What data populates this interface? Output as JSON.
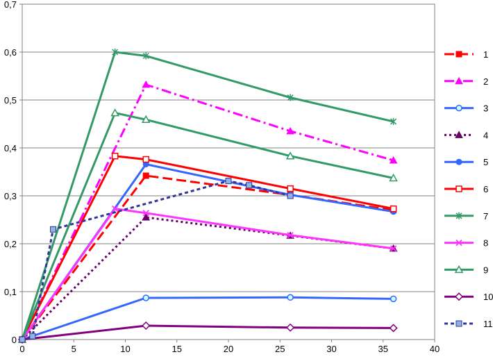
{
  "chart_data": {
    "type": "line",
    "title": "",
    "xlabel": "",
    "ylabel": "",
    "xlim": [
      0,
      40
    ],
    "ylim": [
      0,
      0.7
    ],
    "x_ticks": [
      "0",
      "5",
      "10",
      "15",
      "20",
      "25",
      "30",
      "35",
      "40"
    ],
    "y_ticks": [
      "0",
      "0,1",
      "0,2",
      "0,3",
      "0,4",
      "0,5",
      "0,6",
      "0,7"
    ],
    "grid": "horizontal",
    "legend_position": "right",
    "series": [
      {
        "name": "1",
        "color": "#ff0000",
        "dash": "long-dash",
        "marker": "square",
        "x": [
          0,
          12,
          26,
          36
        ],
        "y": [
          0,
          0.342,
          0.302,
          0.27
        ]
      },
      {
        "name": "2",
        "color": "#ff00ff",
        "dash": "dash-dot",
        "marker": "triangle",
        "x": [
          0,
          12,
          26,
          36
        ],
        "y": [
          0,
          0.532,
          0.435,
          0.374
        ]
      },
      {
        "name": "3",
        "color": "#3366ff",
        "dash": "solid",
        "marker": "circle-open",
        "x": [
          0,
          12,
          26,
          36
        ],
        "y": [
          0,
          0.087,
          0.088,
          0.085
        ]
      },
      {
        "name": "4",
        "color": "#660066",
        "dash": "dot",
        "marker": "triangle",
        "x": [
          0,
          12,
          26,
          36
        ],
        "y": [
          0,
          0.255,
          0.217,
          0.19
        ]
      },
      {
        "name": "5",
        "color": "#3366ff",
        "dash": "solid",
        "marker": "circle-filled",
        "x": [
          0,
          12,
          26,
          36
        ],
        "y": [
          0,
          0.366,
          0.302,
          0.267
        ]
      },
      {
        "name": "6",
        "color": "#ff0000",
        "dash": "solid",
        "marker": "square-open",
        "x": [
          0,
          9,
          12,
          26,
          36
        ],
        "y": [
          0,
          0.383,
          0.376,
          0.315,
          0.273
        ]
      },
      {
        "name": "7",
        "color": "#339966",
        "dash": "solid",
        "marker": "star",
        "x": [
          0,
          9,
          12,
          26,
          36
        ],
        "y": [
          0,
          0.6,
          0.592,
          0.505,
          0.455
        ]
      },
      {
        "name": "8",
        "color": "#ff33ff",
        "dash": "solid",
        "marker": "x",
        "x": [
          0,
          9,
          12,
          26,
          36
        ],
        "y": [
          0,
          0.273,
          0.264,
          0.218,
          0.19
        ]
      },
      {
        "name": "9",
        "color": "#339966",
        "dash": "solid",
        "marker": "triangle-open",
        "x": [
          0,
          9,
          12,
          26,
          36
        ],
        "y": [
          0,
          0.473,
          0.459,
          0.383,
          0.337
        ]
      },
      {
        "name": "10",
        "color": "#800080",
        "dash": "solid",
        "marker": "diamond-open",
        "x": [
          0,
          12,
          26,
          36
        ],
        "y": [
          0,
          0.029,
          0.025,
          0.024
        ]
      },
      {
        "name": "11",
        "color": "#333399",
        "dash": "short-dash",
        "marker": "square-filled",
        "x": [
          0,
          1,
          3,
          20,
          22,
          26
        ],
        "y": [
          0,
          0.007,
          0.23,
          0.331,
          0.322,
          0.3
        ]
      }
    ]
  }
}
